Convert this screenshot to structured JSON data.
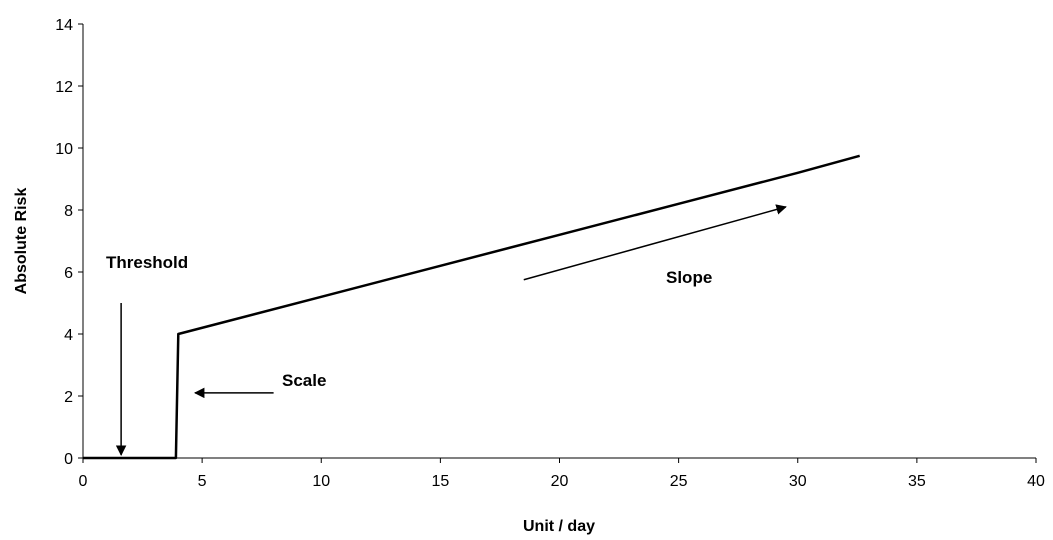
{
  "chart_data": {
    "type": "line",
    "xlabel": "Unit / day",
    "ylabel": "Absolute Risk",
    "xlim": [
      0,
      40
    ],
    "ylim": [
      0,
      14
    ],
    "x_ticks": [
      0,
      5,
      10,
      15,
      20,
      25,
      30,
      35,
      40
    ],
    "y_ticks": [
      0,
      2,
      4,
      6,
      8,
      10,
      12,
      14
    ],
    "grid": false,
    "legend": "none",
    "line_color": "#000000",
    "series": [
      {
        "x": [
          0,
          3.9,
          3.9,
          4.0,
          10,
          15,
          20,
          25,
          30,
          32.6
        ],
        "values": [
          0,
          0,
          0,
          4.0,
          5.2,
          6.2,
          7.2,
          8.2,
          9.2,
          9.75
        ]
      }
    ],
    "annotations": [
      {
        "text": "Threshold",
        "arrow_from": [
          1.6,
          5.0
        ],
        "arrow_to": [
          1.6,
          0.1
        ]
      },
      {
        "text": "Scale",
        "arrow_from": [
          8.0,
          2.1
        ],
        "arrow_to": [
          4.7,
          2.1
        ]
      },
      {
        "text": "Slope",
        "arrow_from": [
          18.5,
          5.75
        ],
        "arrow_to": [
          29.5,
          8.1
        ]
      }
    ]
  }
}
